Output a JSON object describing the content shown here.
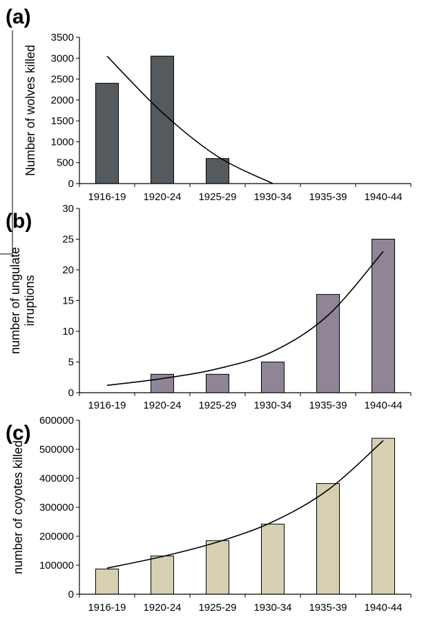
{
  "colors": {
    "panel_a_bars": "#555a5e",
    "panel_b_bars": "#8f8596",
    "panel_c_bars": "#d6cfb2",
    "axis": "#000000",
    "trend": "#000000"
  },
  "chart_data": [
    {
      "panel_label": "(a)",
      "type": "bar",
      "categories": [
        "1916-19",
        "1920-24",
        "1925-29",
        "1930-34",
        "1935-39",
        "1940-44"
      ],
      "series": [
        {
          "values": [
            2400,
            3050,
            600,
            0,
            0,
            0
          ]
        }
      ],
      "trendline": {
        "type": "polynomial",
        "values": [
          3050,
          1700,
          650,
          0,
          null,
          null
        ]
      },
      "ylabel": "Number of wolves killed",
      "xlabel": "",
      "ylim": [
        0,
        3500
      ],
      "yticks": [
        "0",
        "500",
        "1000",
        "1500",
        "2000",
        "2500",
        "3000",
        "3500"
      ],
      "grid": false
    },
    {
      "panel_label": "(b)",
      "type": "bar",
      "categories": [
        "1916-19",
        "1920-24",
        "1925-29",
        "1930-34",
        "1935-39",
        "1940-44"
      ],
      "series": [
        {
          "values": [
            0,
            3,
            3,
            5,
            16,
            25
          ]
        }
      ],
      "trendline": {
        "type": "exponential",
        "values": [
          1.2,
          2.3,
          3.9,
          6.7,
          12.6,
          23
        ]
      },
      "ylabel": "number of ungulate irruptions",
      "xlabel": "",
      "ylim": [
        0,
        30
      ],
      "yticks": [
        "0",
        "5",
        "10",
        "15",
        "20",
        "25",
        "30"
      ],
      "grid": false
    },
    {
      "panel_label": "(c)",
      "type": "bar",
      "categories": [
        "1916-19",
        "1920-24",
        "1925-29",
        "1930-34",
        "1935-39",
        "1940-44"
      ],
      "series": [
        {
          "values": [
            87000,
            132000,
            185000,
            242000,
            382000,
            538000
          ]
        }
      ],
      "trendline": {
        "type": "exponential",
        "values": [
          90000,
          130000,
          180000,
          250000,
          360000,
          530000
        ]
      },
      "ylabel": "number of coyotes killed",
      "xlabel": "",
      "ylim": [
        0,
        600000
      ],
      "yticks": [
        "0",
        "100000",
        "200000",
        "300000",
        "400000",
        "500000",
        "600000"
      ],
      "grid": false
    }
  ]
}
